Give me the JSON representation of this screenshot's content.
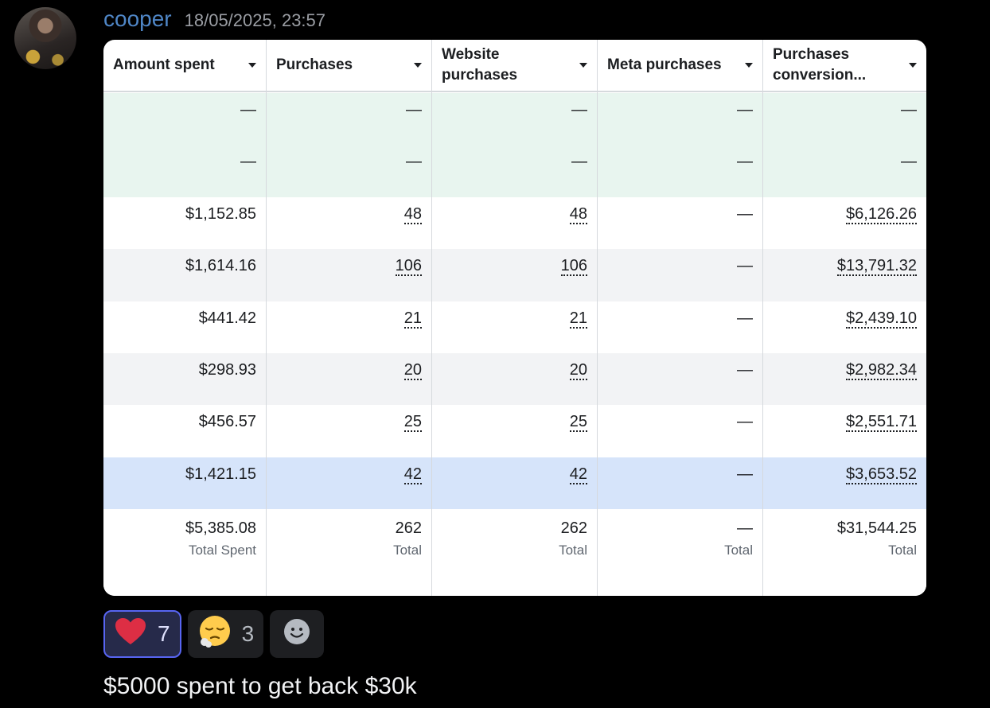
{
  "message": {
    "username": "cooper",
    "timestamp": "18/05/2025, 23:57",
    "text": "$5000 spent to get back $30k"
  },
  "table": {
    "columns": [
      {
        "label": "Amount spent"
      },
      {
        "label": "Purchases"
      },
      {
        "label": "Website purchases"
      },
      {
        "label": "Meta purchases"
      },
      {
        "label": "Purchases conversion..."
      }
    ],
    "rows": [
      {
        "cells": [
          "—",
          "—",
          "—",
          "—",
          "—"
        ],
        "links": [
          false,
          false,
          false,
          false,
          false
        ],
        "bg": "#e8f5ef"
      },
      {
        "cells": [
          "—",
          "—",
          "—",
          "—",
          "—"
        ],
        "links": [
          false,
          false,
          false,
          false,
          false
        ],
        "bg": "#e8f5ef"
      },
      {
        "cells": [
          "$1,152.85",
          "48",
          "48",
          "—",
          "$6,126.26"
        ],
        "links": [
          false,
          true,
          true,
          false,
          true
        ],
        "bg": "#ffffff"
      },
      {
        "cells": [
          "$1,614.16",
          "106",
          "106",
          "—",
          "$13,791.32"
        ],
        "links": [
          false,
          true,
          true,
          false,
          true
        ],
        "bg": "#f2f3f5"
      },
      {
        "cells": [
          "$441.42",
          "21",
          "21",
          "—",
          "$2,439.10"
        ],
        "links": [
          false,
          true,
          true,
          false,
          true
        ],
        "bg": "#ffffff"
      },
      {
        "cells": [
          "$298.93",
          "20",
          "20",
          "—",
          "$2,982.34"
        ],
        "links": [
          false,
          true,
          true,
          false,
          true
        ],
        "bg": "#f2f3f5"
      },
      {
        "cells": [
          "$456.57",
          "25",
          "25",
          "—",
          "$2,551.71"
        ],
        "links": [
          false,
          true,
          true,
          false,
          true
        ],
        "bg": "#ffffff"
      },
      {
        "cells": [
          "$1,421.15",
          "42",
          "42",
          "—",
          "$3,653.52"
        ],
        "links": [
          false,
          true,
          true,
          false,
          true
        ],
        "bg": "#d6e4fa"
      }
    ],
    "totals": [
      {
        "value": "$5,385.08",
        "label": "Total Spent"
      },
      {
        "value": "262",
        "label": "Total"
      },
      {
        "value": "262",
        "label": "Total"
      },
      {
        "value": "—",
        "label": "Total"
      },
      {
        "value": "$31,544.25",
        "label": "Total"
      }
    ]
  },
  "reactions": [
    {
      "emoji": "heart-icon",
      "count": "7",
      "active": true
    },
    {
      "emoji": "relieved-sigh-face-icon",
      "count": "3",
      "active": false
    },
    {
      "emoji": "add-reaction-icon",
      "count": "",
      "active": false
    }
  ],
  "colors": {
    "username": "#4f86c6",
    "background": "#000000",
    "active_reaction_border": "#5865f2"
  }
}
